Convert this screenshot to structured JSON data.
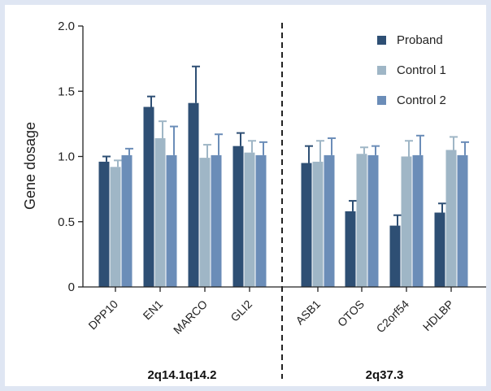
{
  "chart_data": {
    "type": "bar",
    "ylabel": "Gene dosage",
    "ylim": [
      0,
      2.0
    ],
    "yticks": [
      "0",
      "0.5",
      "1.0",
      "1.5",
      "2.0"
    ],
    "ytick_values": [
      0,
      0.5,
      1.0,
      1.5,
      2.0
    ],
    "grid": false,
    "legend_position": "top-right",
    "categories": [
      "DPP10",
      "EN1",
      "MARCO",
      "GLI2",
      "ASB1",
      "OTOS",
      "C2orf54",
      "HDLBP"
    ],
    "groups": [
      {
        "label": "2q14.1q14.2",
        "categories": [
          "DPP10",
          "EN1",
          "MARCO",
          "GLI2"
        ]
      },
      {
        "label": "2q37.3",
        "categories": [
          "ASB1",
          "OTOS",
          "C2orf54",
          "HDLBP"
        ]
      }
    ],
    "series": [
      {
        "name": "Proband",
        "color": "#2e4f74",
        "values": [
          0.96,
          1.38,
          1.41,
          1.08,
          0.95,
          0.58,
          0.47,
          0.57
        ],
        "errors": [
          0.04,
          0.08,
          0.28,
          0.1,
          0.13,
          0.08,
          0.08,
          0.07
        ]
      },
      {
        "name": "Control 1",
        "color": "#9fb6c6",
        "values": [
          0.92,
          1.14,
          0.99,
          1.03,
          0.96,
          1.02,
          1.0,
          1.05
        ],
        "errors": [
          0.05,
          0.13,
          0.1,
          0.09,
          0.16,
          0.05,
          0.12,
          0.1
        ]
      },
      {
        "name": "Control 2",
        "color": "#6b8db8",
        "values": [
          1.01,
          1.01,
          1.01,
          1.01,
          1.01,
          1.01,
          1.01,
          1.01
        ],
        "errors": [
          0.05,
          0.22,
          0.16,
          0.1,
          0.13,
          0.07,
          0.15,
          0.1
        ]
      }
    ]
  }
}
